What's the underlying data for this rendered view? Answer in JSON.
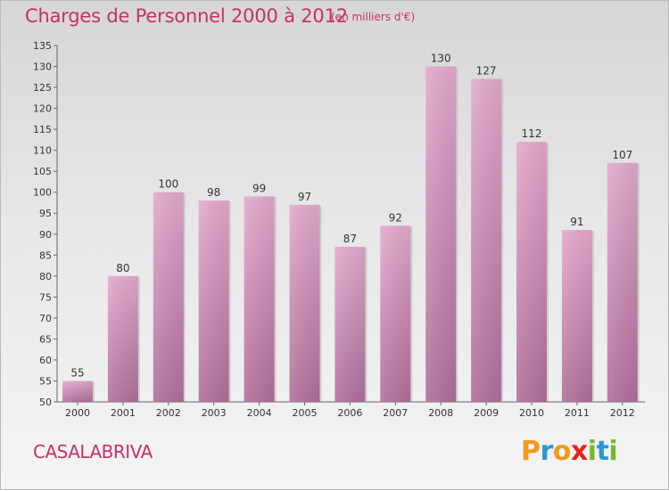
{
  "header": {
    "title": "Charges de Personnel 2000 à 2012",
    "unit": "(en milliers d'€)"
  },
  "footer": {
    "commune": "CASALABRIVA",
    "logo_letters": [
      "P",
      "r",
      "o",
      "x",
      "i",
      "t",
      "i"
    ],
    "logo_colors": [
      "#f29a1c",
      "#2b97d3",
      "#f29a1c",
      "#e2261b",
      "#78b72b",
      "#2b97d3",
      "#78b72b"
    ]
  },
  "chart_data": {
    "type": "bar",
    "title": "Charges de Personnel 2000 à 2012",
    "subtitle": "(en milliers d'€)",
    "categories": [
      "2000",
      "2001",
      "2002",
      "2003",
      "2004",
      "2005",
      "2006",
      "2007",
      "2008",
      "2009",
      "2010",
      "2011",
      "2012"
    ],
    "values": [
      55,
      80,
      100,
      98,
      99,
      97,
      87,
      92,
      130,
      127,
      112,
      91,
      107
    ],
    "ylim": [
      50,
      135
    ],
    "yticks": [
      50,
      55,
      60,
      65,
      70,
      75,
      80,
      85,
      90,
      95,
      100,
      105,
      110,
      115,
      120,
      125,
      130,
      135
    ],
    "grid": false,
    "bar_color": "#d98ab6",
    "data_labels": true
  }
}
